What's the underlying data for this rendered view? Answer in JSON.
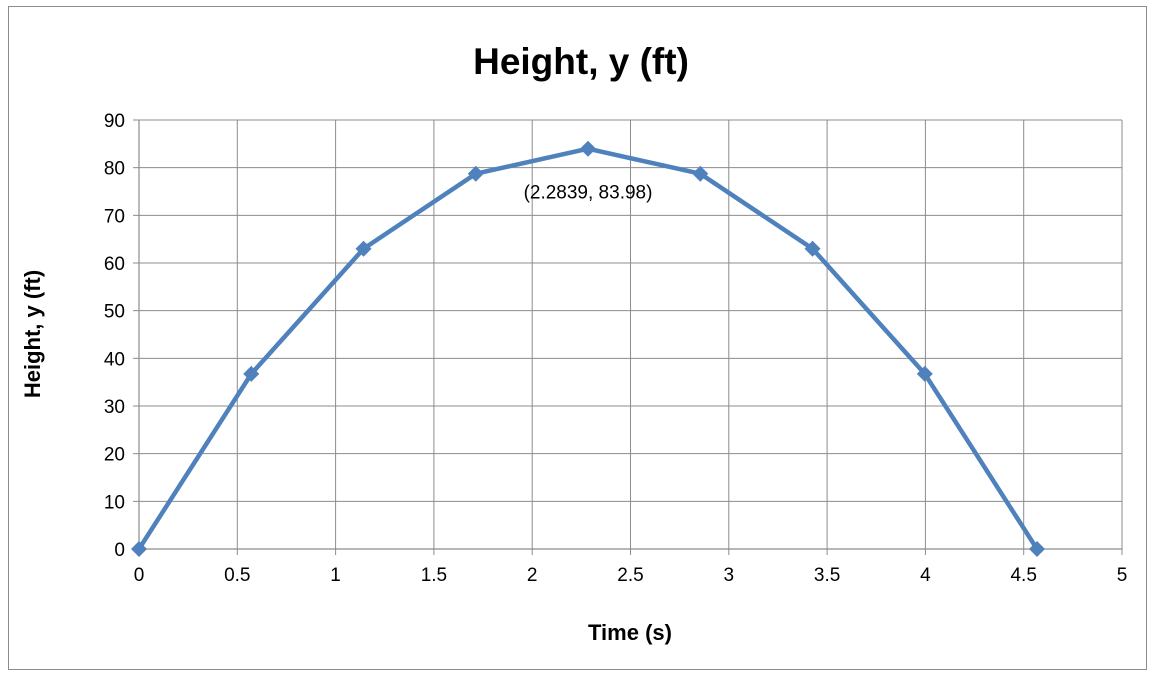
{
  "chart_data": {
    "type": "line",
    "title": "Height, y (ft)",
    "xlabel": "Time (s)",
    "ylabel": "Height, y (ft)",
    "xlim": [
      0,
      5
    ],
    "ylim": [
      0,
      90
    ],
    "xticks": [
      0,
      0.5,
      1,
      1.5,
      2,
      2.5,
      3,
      3.5,
      4,
      4.5,
      5
    ],
    "yticks": [
      0,
      10,
      20,
      30,
      40,
      50,
      60,
      70,
      80,
      90
    ],
    "grid": true,
    "legend": "none",
    "series": [
      {
        "color": "#4f81bd",
        "marker": "diamond",
        "x": [
          0,
          0.571,
          1.142,
          1.713,
          2.2839,
          2.855,
          3.426,
          3.997,
          4.5678
        ],
        "y": [
          0,
          36.74,
          62.98,
          78.73,
          83.98,
          78.73,
          62.98,
          36.74,
          0
        ]
      }
    ],
    "annotations": [
      {
        "text": "(2.2839, 83.98)",
        "x": 2.2839,
        "y": 83.98
      }
    ]
  }
}
